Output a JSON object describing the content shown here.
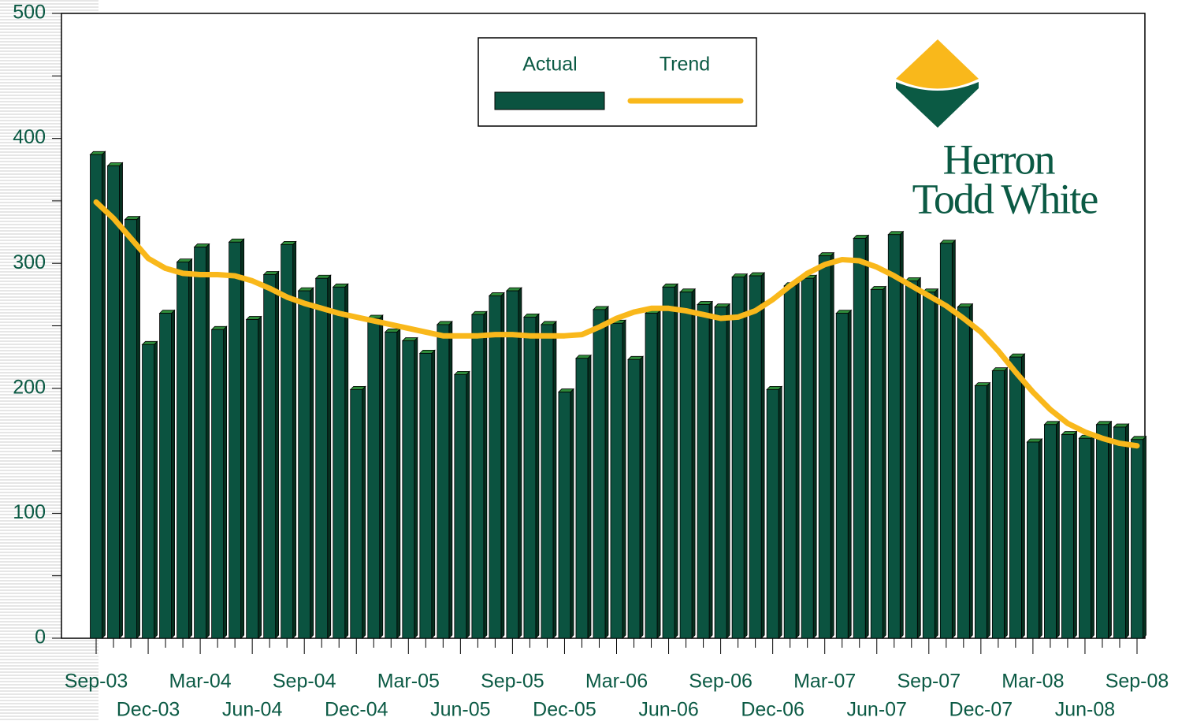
{
  "chart_data": {
    "type": "bar",
    "categories": [
      "Sep-03",
      null,
      null,
      "Dec-03",
      null,
      null,
      "Mar-04",
      null,
      null,
      "Jun-04",
      null,
      null,
      "Sep-04",
      null,
      null,
      "Dec-04",
      null,
      null,
      "Mar-05",
      null,
      null,
      "Jun-05",
      null,
      null,
      "Sep-05",
      null,
      null,
      "Dec-05",
      null,
      null,
      "Mar-06",
      null,
      null,
      "Jun-06",
      null,
      null,
      "Sep-06",
      null,
      null,
      "Dec-06",
      null,
      null,
      "Mar-07",
      null,
      null,
      "Jun-07",
      null,
      null,
      "Sep-07",
      null,
      null,
      "Dec-07",
      null,
      null,
      "Mar-08",
      null,
      null,
      "Jun-08",
      null,
      null,
      "Sep-08"
    ],
    "series": [
      {
        "name": "Actual",
        "type": "bar",
        "color": "#0b5340",
        "values": [
          387,
          378,
          335,
          235,
          260,
          301,
          313,
          247,
          317,
          255,
          291,
          315,
          278,
          288,
          281,
          199,
          256,
          245,
          238,
          228,
          251,
          211,
          259,
          274,
          278,
          257,
          251,
          197,
          224,
          263,
          252,
          223,
          260,
          281,
          277,
          267,
          265,
          289,
          290,
          199,
          282,
          288,
          306,
          260,
          320,
          279,
          323,
          286,
          277,
          316,
          265,
          202,
          214,
          225,
          157,
          171,
          163,
          160,
          171,
          169,
          159
        ]
      },
      {
        "name": "Trend",
        "type": "line",
        "color": "#f9b81b",
        "values": [
          349,
          336,
          320,
          304,
          296,
          292,
          291,
          291,
          290,
          286,
          280,
          273,
          268,
          264,
          260,
          257,
          254,
          251,
          248,
          245,
          242,
          242,
          242,
          243,
          243,
          242,
          242,
          242,
          243,
          249,
          256,
          261,
          264,
          264,
          262,
          259,
          256,
          257,
          262,
          271,
          282,
          292,
          299,
          303,
          302,
          297,
          290,
          282,
          274,
          266,
          256,
          245,
          230,
          213,
          197,
          183,
          172,
          165,
          160,
          156,
          154
        ]
      }
    ],
    "ylim": [
      0,
      500
    ],
    "yticks": [
      0,
      100,
      200,
      300,
      400,
      500
    ],
    "logo": [
      "Herron",
      "Todd White"
    ]
  }
}
